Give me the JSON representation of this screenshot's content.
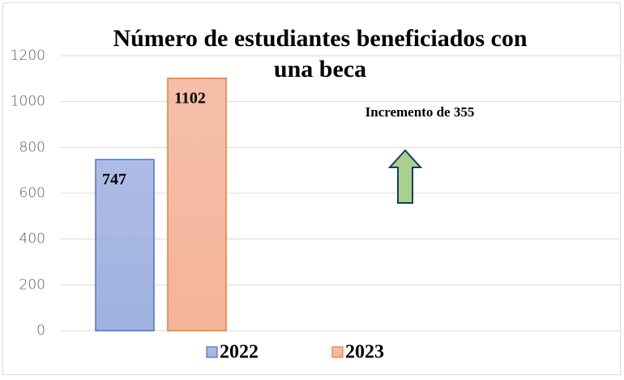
{
  "chart_data": {
    "type": "bar",
    "title": "Número de estudiantes beneficiados con una beca",
    "categories": [
      null
    ],
    "series": [
      {
        "name": "2022",
        "color": "#9fb1e0",
        "edgecolor": "#4f72c4",
        "values": [
          747
        ]
      },
      {
        "name": "2023",
        "color": "#f4b49a",
        "edgecolor": "#ed7d31",
        "values": [
          1102
        ]
      }
    ],
    "ylim": [
      0,
      1200
    ],
    "yticks": [
      0,
      200,
      400,
      600,
      800,
      1000,
      1200
    ],
    "grid": true,
    "legend": "bottom",
    "annotation": "Incremento de 355"
  }
}
